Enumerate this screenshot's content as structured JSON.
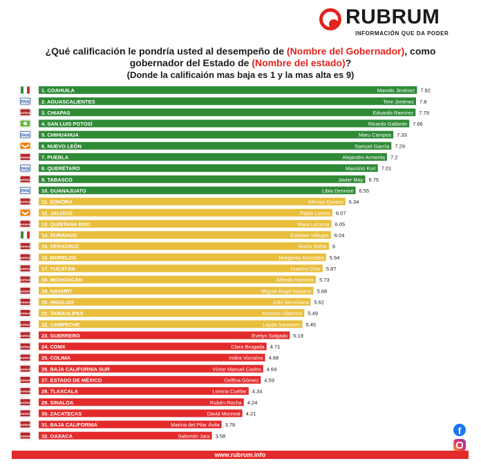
{
  "brand": {
    "name": "RUBRUM",
    "tagline": "INFORMACIÓN QUE DA PODER",
    "url": "www.rubrum.info"
  },
  "title": {
    "line1_a": "¿Qué calificación le pondría usted al desempeño de ",
    "line1_hl": "(Nombre del Gobernador)",
    "line1_b": ", como",
    "line2_a": "gobernador del Estado de ",
    "line2_hl": "(Nombre del estado)",
    "line2_b": "?",
    "line3": "(Donde la calificaión mas baja es 1 y la mas alta es 9)"
  },
  "colors": {
    "green": "#2f8a36",
    "yellow": "#e8be3c",
    "red": "#e32b2b",
    "accent": "#e0241f"
  },
  "chart_data": {
    "type": "bar",
    "orientation": "horizontal",
    "states": [
      "1. COAHUILA",
      "2. AGUASCALIENTES",
      "3. CHIAPAS",
      "4. SAN LUIS POTOSÍ",
      "5. CHIHUAHUA",
      "6. NUEVO LEÓN",
      "7. PUEBLA",
      "8. QUERÉTARO",
      "9. TABASCO",
      "10. GUANAJUATO",
      "11. SONORA",
      "12. JALISCO",
      "13. QUINTANA ROO",
      "14. DURANGO",
      "15. VERACRUZ",
      "16. MORELOS",
      "17. YUCATÁN",
      "18. MICHOACÁN",
      "19. NAYARIT",
      "20. HIDALGO",
      "21. TAMAULIPAS",
      "22. CAMPECHE",
      "23. GUERRERO",
      "24. CDMX",
      "25. COLIMA",
      "26. BAJA CALIFORNIA SUR",
      "27. ESTADO DE MÉXICO",
      "28. TLAXCALA",
      "29. SINALOA",
      "30. ZACATECAS",
      "31. BAJA CALIFORNIA",
      "32. OAXACA"
    ],
    "governors": [
      "Manolo Jiménez",
      "Tere Jiménez",
      "Eduardo Ramírez",
      "Ricardo Gallardo",
      "Maru Campos",
      "Samuel García",
      "Alejandro Armenta",
      "Mauricio Kuri",
      "Javier May",
      "Libia Dennise",
      "Alfonso Durazo",
      "Pablo Lemus",
      "Mara Lezama",
      "Esteban Villegas",
      "Rocío Nahle",
      "Margarita González",
      "Huacho Díaz",
      "Alfredo Ramírez",
      "Miguel Ángel Navarro",
      "Julio Menchaca",
      "Américo Villarreal",
      "Layda Sansores",
      "Evelyn Salgado",
      "Clara Brugada",
      "Indira Vizcaíno",
      "Víctor Manuel Castro",
      "Delfina Gómez",
      "Lorena Cuéllar",
      "Rubén Rocha",
      "David Monreal",
      "Marina del Pilar Ávila",
      "Salomón Jara"
    ],
    "values": [
      7.82,
      7.8,
      7.79,
      7.66,
      7.33,
      7.29,
      7.2,
      7.01,
      6.75,
      6.55,
      6.34,
      6.07,
      6.05,
      6.04,
      6,
      5.94,
      5.87,
      5.73,
      5.68,
      5.62,
      5.49,
      5.45,
      5.19,
      4.71,
      4.68,
      4.64,
      4.59,
      4.34,
      4.24,
      4.21,
      3.78,
      3.58
    ],
    "value_labels": [
      "7.82",
      "7.8",
      "7.79",
      "7.66",
      "7.33",
      "7.29",
      "7.2",
      "7.01",
      "6.75",
      "6.55",
      "6.34",
      "6.07",
      "6.05",
      "6.04",
      "6",
      "5.94",
      "5.87",
      "5.73",
      "5.68",
      "5.62",
      "5.49",
      "5.45",
      "5.19",
      "4.71",
      "4.68",
      "4.64",
      "4.59",
      "4.34",
      "4.24",
      "4.21",
      "3.78",
      "3.58"
    ],
    "color_groups": [
      "green",
      "green",
      "green",
      "green",
      "green",
      "green",
      "green",
      "green",
      "green",
      "green",
      "yellow",
      "yellow",
      "yellow",
      "yellow",
      "yellow",
      "yellow",
      "yellow",
      "yellow",
      "yellow",
      "yellow",
      "yellow",
      "yellow",
      "red",
      "red",
      "red",
      "red",
      "red",
      "red",
      "red",
      "red",
      "red",
      "red"
    ],
    "party_logos": [
      "PRI",
      "PAN",
      "MORENA",
      "PVEM",
      "PAN",
      "MC",
      "MORENA",
      "PAN",
      "MORENA",
      "PAN",
      "MORENA",
      "MC",
      "MORENA",
      "PRI",
      "MORENA",
      "MORENA",
      "MORENA",
      "MORENA",
      "MORENA",
      "MORENA",
      "MORENA",
      "MORENA",
      "MORENA",
      "MORENA",
      "MORENA",
      "MORENA",
      "MORENA",
      "MORENA",
      "MORENA",
      "MORENA",
      "MORENA",
      "MORENA"
    ],
    "party_colors": {
      "PRI": "#2f8a36",
      "PAN": "#1f4f9c",
      "MORENA": "#b3282d",
      "PVEM": "#6bb644",
      "MC": "#f07d00"
    },
    "xlim": [
      0,
      9
    ],
    "grid": false
  }
}
